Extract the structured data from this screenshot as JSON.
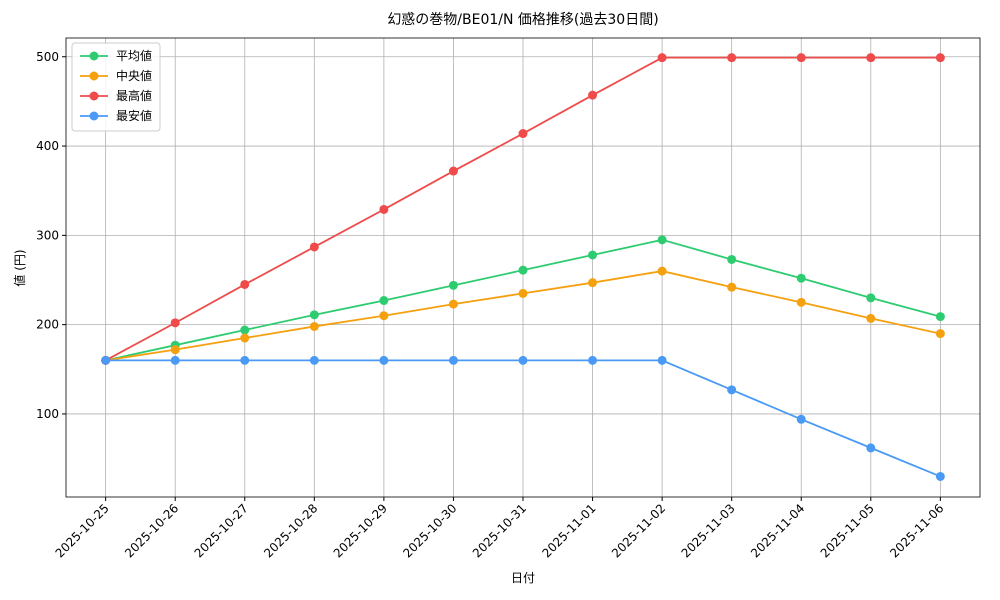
{
  "chart_data": {
    "type": "line",
    "title": "幻惑の巻物/BE01/N 価格推移(過去30日間)",
    "x_label": "日付",
    "y_label": "値 (円)",
    "categories": [
      "2025-10-25",
      "2025-10-26",
      "2025-10-27",
      "2025-10-28",
      "2025-10-29",
      "2025-10-30",
      "2025-10-31",
      "2025-11-01",
      "2025-11-02",
      "2025-11-03",
      "2025-11-04",
      "2025-11-05",
      "2025-11-06"
    ],
    "series": [
      {
        "name": "平均値",
        "color": "#2ecc71",
        "values": [
          160,
          177,
          194,
          211,
          227,
          244,
          261,
          278,
          295,
          273,
          252,
          230,
          209
        ]
      },
      {
        "name": "中央値",
        "color": "#f5a00f",
        "values": [
          160,
          172,
          185,
          198,
          210,
          223,
          235,
          247,
          260,
          242,
          225,
          207,
          190
        ]
      },
      {
        "name": "最高値",
        "color": "#ef4b4b",
        "values": [
          160,
          202,
          245,
          287,
          329,
          372,
          414,
          457,
          499,
          499,
          499,
          499,
          499
        ]
      },
      {
        "name": "最安値",
        "color": "#4a9af5",
        "values": [
          160,
          160,
          160,
          160,
          160,
          160,
          160,
          160,
          160,
          127,
          94,
          62,
          30
        ]
      }
    ],
    "ylim": [
      7,
      521
    ],
    "yticks": [
      100,
      200,
      300,
      400,
      500
    ],
    "grid": true,
    "legend": "upper-left"
  }
}
